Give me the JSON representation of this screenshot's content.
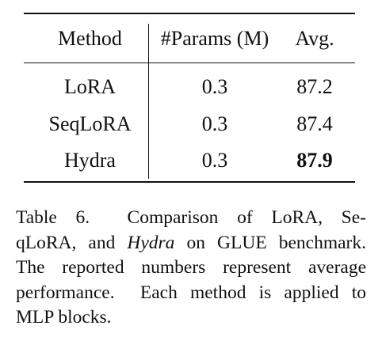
{
  "table": {
    "header": [
      "Method",
      "#Params (M)",
      "Avg."
    ],
    "rows": [
      [
        "LoRA",
        "0.3",
        "87.2"
      ],
      [
        "SeqLoRA",
        "0.3",
        "87.4"
      ],
      [
        "Hydra",
        "0.3",
        "87.9"
      ]
    ],
    "bold_cells": [
      [
        2,
        2
      ]
    ]
  },
  "caption": {
    "lines": [
      [
        {
          "text": "Table 6.  Comparison of LoRA, Se-"
        }
      ],
      [
        {
          "text": "qLoRA, and "
        },
        {
          "text": "Hydra",
          "style": "italic"
        },
        {
          "text": " on GLUE benchmark."
        }
      ],
      [
        {
          "text": "The reported numbers represent average"
        }
      ],
      [
        {
          "text": "performance.  Each method is applied to"
        }
      ],
      [
        {
          "text": "MLP blocks."
        }
      ]
    ]
  }
}
